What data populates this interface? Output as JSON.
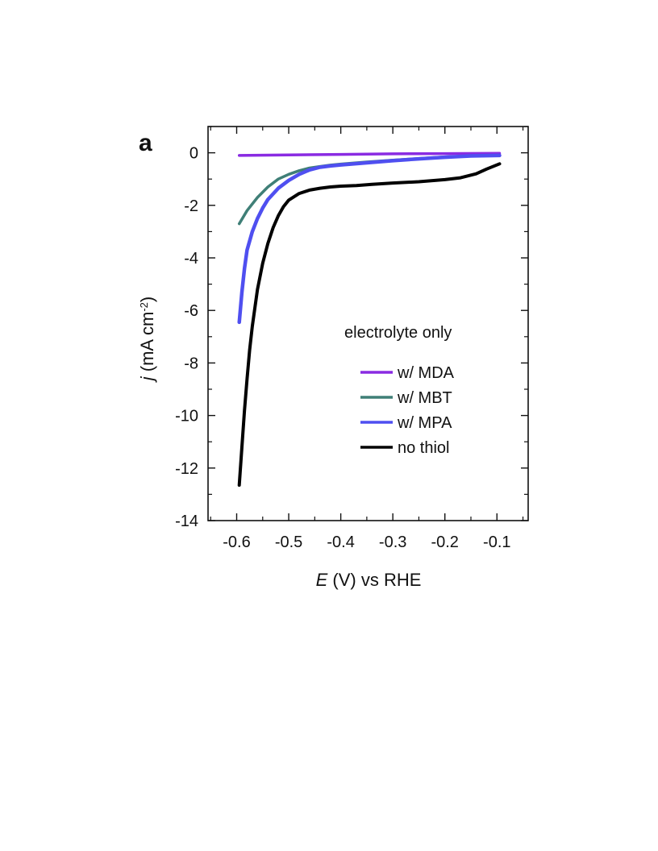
{
  "chart_data": {
    "type": "line",
    "panel_label": "a",
    "xlabel_italic": "E",
    "xlabel_rest": " (V) vs RHE",
    "ylabel_italic": "j",
    "ylabel_rest": " (mA cm",
    "ylabel_sup": "-2",
    "ylabel_close": ")",
    "xlim": [
      -0.655,
      -0.04
    ],
    "ylim": [
      -14,
      1
    ],
    "x_ticks": [
      -0.6,
      -0.5,
      -0.4,
      -0.3,
      -0.2,
      -0.1
    ],
    "x_tick_labels": [
      "-0.6",
      "-0.5",
      "-0.4",
      "-0.3",
      "-0.2",
      "-0.1"
    ],
    "y_ticks": [
      0,
      -2,
      -4,
      -6,
      -8,
      -10,
      -12,
      -14
    ],
    "y_tick_labels": [
      "0",
      "-2",
      "-4",
      "-6",
      "-8",
      "-10",
      "-12",
      "-14"
    ],
    "legend_title": "electrolyte only",
    "series": [
      {
        "name": "w/ MDA",
        "color": "#8a2be2",
        "points": [
          [
            -0.595,
            -0.1
          ],
          [
            -0.5,
            -0.08
          ],
          [
            -0.4,
            -0.06
          ],
          [
            -0.3,
            -0.04
          ],
          [
            -0.2,
            -0.03
          ],
          [
            -0.095,
            -0.02
          ]
        ]
      },
      {
        "name": "w/ MBT",
        "color": "#3f7f77",
        "points": [
          [
            -0.595,
            -2.7
          ],
          [
            -0.58,
            -2.2
          ],
          [
            -0.56,
            -1.7
          ],
          [
            -0.54,
            -1.3
          ],
          [
            -0.52,
            -1.0
          ],
          [
            -0.5,
            -0.82
          ],
          [
            -0.48,
            -0.68
          ],
          [
            -0.46,
            -0.58
          ],
          [
            -0.44,
            -0.52
          ],
          [
            -0.42,
            -0.47
          ],
          [
            -0.4,
            -0.43
          ],
          [
            -0.35,
            -0.35
          ],
          [
            -0.3,
            -0.28
          ],
          [
            -0.25,
            -0.22
          ],
          [
            -0.2,
            -0.16
          ],
          [
            -0.15,
            -0.12
          ],
          [
            -0.095,
            -0.1
          ]
        ]
      },
      {
        "name": "w/ MPA",
        "color": "#4f4ff0",
        "points": [
          [
            -0.595,
            -6.45
          ],
          [
            -0.59,
            -5.3
          ],
          [
            -0.585,
            -4.4
          ],
          [
            -0.58,
            -3.7
          ],
          [
            -0.57,
            -3.0
          ],
          [
            -0.56,
            -2.5
          ],
          [
            -0.55,
            -2.1
          ],
          [
            -0.54,
            -1.78
          ],
          [
            -0.52,
            -1.35
          ],
          [
            -0.5,
            -1.05
          ],
          [
            -0.48,
            -0.82
          ],
          [
            -0.46,
            -0.65
          ],
          [
            -0.44,
            -0.55
          ],
          [
            -0.42,
            -0.5
          ],
          [
            -0.4,
            -0.46
          ],
          [
            -0.35,
            -0.38
          ],
          [
            -0.3,
            -0.3
          ],
          [
            -0.25,
            -0.23
          ],
          [
            -0.2,
            -0.17
          ],
          [
            -0.15,
            -0.12
          ],
          [
            -0.095,
            -0.1
          ]
        ]
      },
      {
        "name": "no thiol",
        "color": "#000000",
        "points": [
          [
            -0.595,
            -12.65
          ],
          [
            -0.59,
            -11.2
          ],
          [
            -0.585,
            -9.8
          ],
          [
            -0.58,
            -8.6
          ],
          [
            -0.575,
            -7.5
          ],
          [
            -0.57,
            -6.6
          ],
          [
            -0.56,
            -5.2
          ],
          [
            -0.55,
            -4.2
          ],
          [
            -0.54,
            -3.45
          ],
          [
            -0.53,
            -2.85
          ],
          [
            -0.52,
            -2.4
          ],
          [
            -0.51,
            -2.05
          ],
          [
            -0.5,
            -1.8
          ],
          [
            -0.48,
            -1.55
          ],
          [
            -0.46,
            -1.42
          ],
          [
            -0.44,
            -1.35
          ],
          [
            -0.42,
            -1.3
          ],
          [
            -0.4,
            -1.27
          ],
          [
            -0.37,
            -1.25
          ],
          [
            -0.34,
            -1.2
          ],
          [
            -0.3,
            -1.15
          ],
          [
            -0.25,
            -1.1
          ],
          [
            -0.2,
            -1.02
          ],
          [
            -0.17,
            -0.95
          ],
          [
            -0.14,
            -0.8
          ],
          [
            -0.12,
            -0.62
          ],
          [
            -0.095,
            -0.42
          ]
        ]
      }
    ]
  }
}
